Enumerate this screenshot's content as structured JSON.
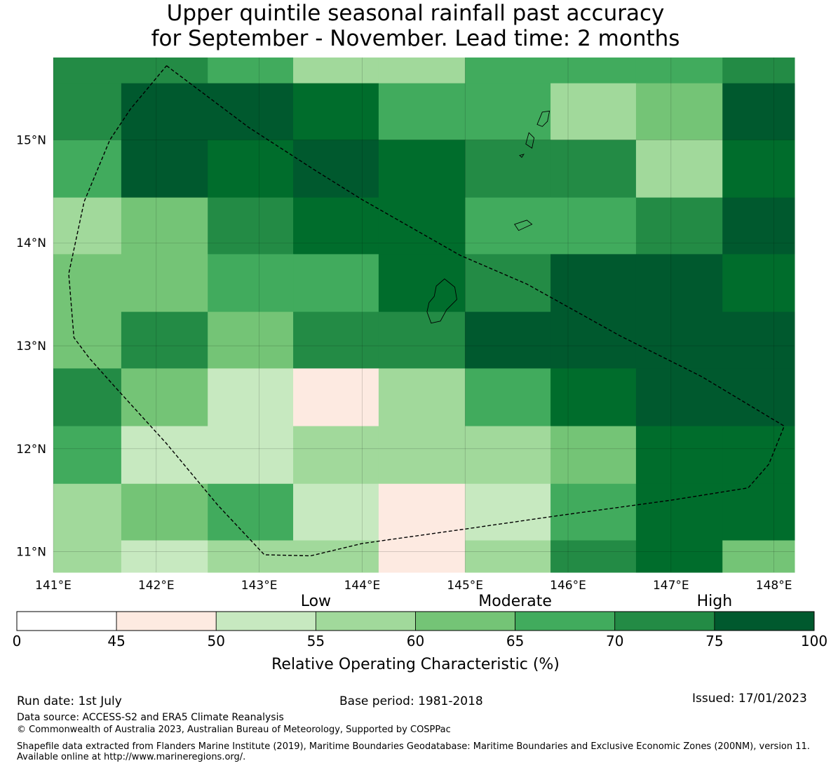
{
  "title": {
    "line1": "Upper quintile seasonal rainfall past accuracy",
    "line2": "for September - November. Lead time: 2 months"
  },
  "map": {
    "lon_range": [
      141.0,
      148.2
    ],
    "lat_range": [
      10.8,
      15.8
    ],
    "x_ticks": [
      {
        "value": 141,
        "label": "141°E"
      },
      {
        "value": 142,
        "label": "142°E"
      },
      {
        "value": 143,
        "label": "143°E"
      },
      {
        "value": 144,
        "label": "144°E"
      },
      {
        "value": 145,
        "label": "145°E"
      },
      {
        "value": 146,
        "label": "146°E"
      },
      {
        "value": 147,
        "label": "147°E"
      },
      {
        "value": 148,
        "label": "148°E"
      }
    ],
    "y_ticks": [
      {
        "value": 15,
        "label": "15°N"
      },
      {
        "value": 14,
        "label": "14°N"
      },
      {
        "value": 13,
        "label": "13°N"
      },
      {
        "value": 12,
        "label": "12°N"
      },
      {
        "value": 11,
        "label": "11°N"
      }
    ],
    "cell_lon_edges": [
      141.0,
      141.66,
      142.5,
      143.33,
      144.16,
      145.0,
      145.83,
      146.66,
      147.5,
      148.2
    ],
    "cell_lat_edges": [
      15.8,
      15.55,
      15.0,
      14.44,
      13.89,
      13.33,
      12.78,
      12.22,
      11.66,
      11.11,
      10.8
    ],
    "class_grid": [
      [
        6,
        6,
        5,
        3,
        3,
        5,
        5,
        5,
        6
      ],
      [
        6,
        8,
        8,
        7,
        5,
        5,
        3,
        4,
        8
      ],
      [
        5,
        8,
        7,
        8,
        7,
        6,
        6,
        3,
        7
      ],
      [
        3,
        4,
        6,
        7,
        7,
        5,
        5,
        6,
        8
      ],
      [
        4,
        4,
        5,
        5,
        7,
        6,
        8,
        8,
        7
      ],
      [
        4,
        6,
        4,
        6,
        6,
        8,
        8,
        8,
        8
      ],
      [
        6,
        4,
        2,
        1,
        3,
        5,
        7,
        8,
        8
      ],
      [
        5,
        2,
        2,
        3,
        3,
        3,
        4,
        7,
        7
      ],
      [
        3,
        4,
        5,
        2,
        1,
        2,
        5,
        7,
        7
      ],
      [
        3,
        2,
        3,
        3,
        1,
        3,
        6,
        7,
        4
      ]
    ],
    "eez_boundary": [
      [
        142.1,
        15.72
      ],
      [
        142.9,
        15.12
      ],
      [
        143.55,
        14.7
      ],
      [
        144.0,
        14.42
      ],
      [
        144.95,
        13.88
      ],
      [
        145.6,
        13.6
      ],
      [
        146.5,
        13.1
      ],
      [
        147.3,
        12.7
      ],
      [
        148.1,
        12.22
      ],
      [
        147.95,
        11.85
      ],
      [
        147.75,
        11.62
      ],
      [
        147.0,
        11.5
      ],
      [
        145.9,
        11.35
      ],
      [
        145.0,
        11.22
      ],
      [
        144.0,
        11.08
      ],
      [
        143.5,
        10.96
      ],
      [
        143.05,
        10.97
      ],
      [
        142.6,
        11.45
      ],
      [
        142.1,
        12.05
      ],
      [
        141.6,
        12.6
      ],
      [
        141.35,
        12.88
      ],
      [
        141.2,
        13.08
      ],
      [
        141.15,
        13.7
      ],
      [
        141.3,
        14.4
      ],
      [
        141.55,
        15.0
      ],
      [
        141.75,
        15.3
      ],
      [
        142.1,
        15.72
      ]
    ],
    "islands": [
      [
        [
          144.8,
          13.65
        ],
        [
          144.9,
          13.57
        ],
        [
          144.92,
          13.45
        ],
        [
          144.82,
          13.35
        ],
        [
          144.76,
          13.24
        ],
        [
          144.67,
          13.22
        ],
        [
          144.63,
          13.33
        ],
        [
          144.65,
          13.42
        ],
        [
          144.7,
          13.48
        ],
        [
          144.72,
          13.58
        ],
        [
          144.8,
          13.65
        ]
      ],
      [
        [
          145.48,
          14.18
        ],
        [
          145.6,
          14.22
        ],
        [
          145.65,
          14.18
        ],
        [
          145.52,
          14.12
        ],
        [
          145.48,
          14.18
        ]
      ],
      [
        [
          145.75,
          15.27
        ],
        [
          145.82,
          15.28
        ],
        [
          145.8,
          15.18
        ],
        [
          145.75,
          15.13
        ],
        [
          145.7,
          15.15
        ],
        [
          145.75,
          15.27
        ]
      ],
      [
        [
          145.62,
          15.07
        ],
        [
          145.67,
          15.02
        ],
        [
          145.65,
          14.92
        ],
        [
          145.59,
          14.96
        ],
        [
          145.62,
          15.07
        ]
      ],
      [
        [
          145.53,
          14.85
        ],
        [
          145.57,
          14.86
        ],
        [
          145.55,
          14.83
        ],
        [
          145.53,
          14.85
        ]
      ]
    ]
  },
  "colorbar": {
    "category_labels": [
      "Low",
      "Moderate",
      "High"
    ],
    "boundaries": [
      "0",
      "45",
      "50",
      "55",
      "60",
      "65",
      "70",
      "75",
      "100"
    ],
    "colors": [
      "#ffffff",
      "#fdeae1",
      "#c7e9c0",
      "#a1d99b",
      "#74c476",
      "#41ab5d",
      "#238b45",
      "#006d2c",
      "#00592e"
    ],
    "label": "Relative Operating Characteristic (%)"
  },
  "footer": {
    "run_date": "Run date: 1st July",
    "base_period": "Base period: 1981-2018",
    "issued": "Issued: 17/01/2023",
    "data_source": "Data source: ACCESS-S2 and ERA5 Climate Reanalysis",
    "copyright": "© Commonwealth of Australia 2023, Australian Bureau of Meteorology, Supported by COSPPac",
    "shapefile_note": "Shapefile data extracted from Flanders Marine Institute (2019), Maritime Boundaries Geodatabase: Maritime Boundaries and Exclusive Economic Zones (200NM), version 11. Available online at http://www.marineregions.org/."
  }
}
